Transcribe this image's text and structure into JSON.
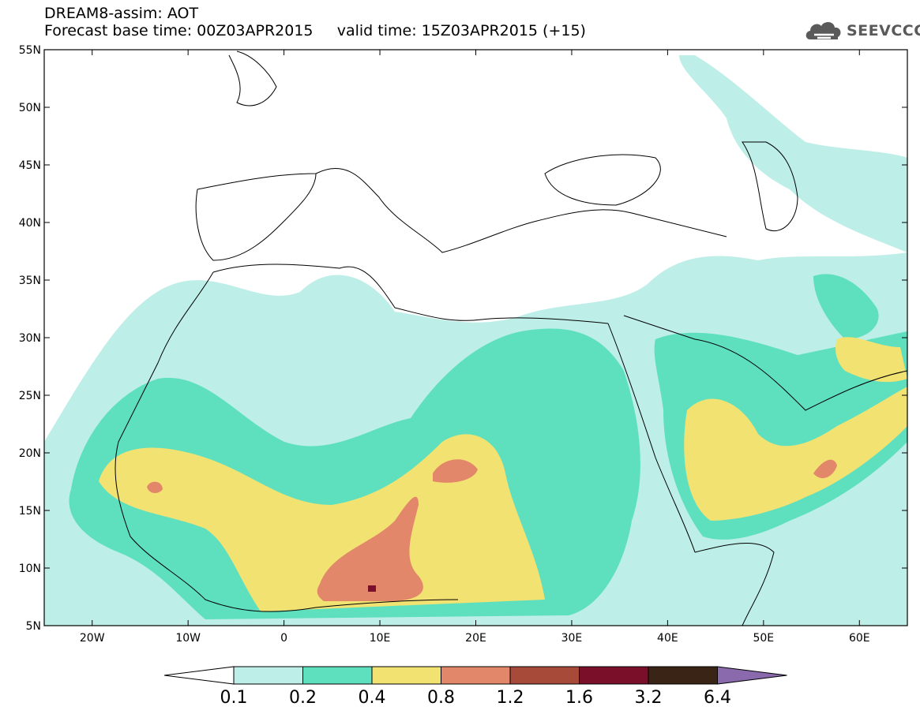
{
  "header": {
    "line1": "DREAM8-assim: AOT",
    "base_label": "Forecast base time: 00Z03APR2015",
    "valid_label": "valid time: 15Z03APR2015 (+15)"
  },
  "logo": {
    "text": "SEEVCCC",
    "icon": "cloud-icon",
    "color": "#5a5a5a"
  },
  "map": {
    "lon_range": [
      -25,
      65
    ],
    "lat_range": [
      5,
      55
    ],
    "lat_ticks": [
      {
        "value": 55,
        "label": "55N"
      },
      {
        "value": 50,
        "label": "50N"
      },
      {
        "value": 45,
        "label": "45N"
      },
      {
        "value": 40,
        "label": "40N"
      },
      {
        "value": 35,
        "label": "35N"
      },
      {
        "value": 30,
        "label": "30N"
      },
      {
        "value": 25,
        "label": "25N"
      },
      {
        "value": 20,
        "label": "20N"
      },
      {
        "value": 15,
        "label": "15N"
      },
      {
        "value": 10,
        "label": "10N"
      },
      {
        "value": 5,
        "label": "5N"
      }
    ],
    "lon_ticks": [
      {
        "value": -20,
        "label": "20W"
      },
      {
        "value": -10,
        "label": "10W"
      },
      {
        "value": 0,
        "label": "0"
      },
      {
        "value": 10,
        "label": "10E"
      },
      {
        "value": 20,
        "label": "20E"
      },
      {
        "value": 30,
        "label": "30E"
      },
      {
        "value": 40,
        "label": "40E"
      },
      {
        "value": 50,
        "label": "50E"
      },
      {
        "value": 60,
        "label": "60E"
      }
    ]
  },
  "colorbar": {
    "labels": [
      "0.1",
      "0.2",
      "0.4",
      "0.8",
      "1.2",
      "1.6",
      "3.2",
      "6.4"
    ],
    "colors": [
      "#ffffff",
      "#bdeee8",
      "#5ee0bf",
      "#f2e272",
      "#e2876a",
      "#a84a3a",
      "#7a0f2a",
      "#3a2416",
      "#8a6aac"
    ]
  },
  "aot_colors": {
    "c01": "#bdeee8",
    "c02": "#5ee0bf",
    "c04": "#f2e272",
    "c08": "#e2876a",
    "c12": "#a84a3a",
    "c16": "#7a0f2a"
  }
}
